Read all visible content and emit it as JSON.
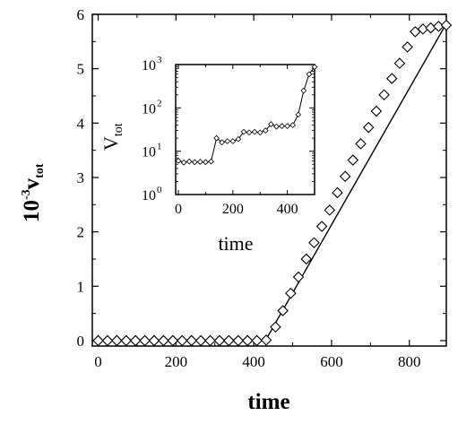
{
  "chart_data": [
    {
      "type": "line",
      "name": "main",
      "xlabel": "time",
      "ylabel_prefix": "10",
      "ylabel_exp": "-3",
      "ylabel_var": "v",
      "ylabel_sub": "tot",
      "xlim": [
        -15,
        895
      ],
      "ylim": [
        -0.1,
        6
      ],
      "xticks": [
        0,
        200,
        400,
        600,
        800
      ],
      "yticks": [
        0,
        1,
        2,
        3,
        4,
        5,
        6
      ],
      "grid": false,
      "line": {
        "x": [
          0,
          430,
          895
        ],
        "y": [
          0,
          0,
          5.83
        ]
      },
      "markers": {
        "x": [
          0,
          24,
          48,
          72,
          96,
          120,
          144,
          168,
          192,
          216,
          240,
          264,
          288,
          312,
          336,
          360,
          384,
          408,
          432,
          456,
          475,
          495,
          515,
          535,
          555,
          575,
          595,
          615,
          635,
          655,
          675,
          695,
          715,
          735,
          755,
          775,
          795,
          815,
          835,
          855,
          875,
          895
        ],
        "y": [
          0,
          0,
          0,
          0,
          0,
          0,
          0,
          0,
          0,
          0,
          0,
          0,
          0,
          0,
          0,
          0,
          0,
          0,
          0.01,
          0.25,
          0.55,
          0.87,
          1.17,
          1.5,
          1.8,
          2.1,
          2.4,
          2.72,
          3.02,
          3.32,
          3.62,
          3.92,
          4.22,
          4.52,
          4.82,
          5.1,
          5.4,
          5.68,
          5.73,
          5.75,
          5.78,
          5.8
        ]
      }
    },
    {
      "type": "line",
      "name": "inset",
      "xlabel": "time",
      "ylabel_var": "V",
      "ylabel_sub": "tot",
      "xscale": "linear",
      "yscale": "log",
      "xlim": [
        -10,
        500
      ],
      "ylim": [
        1,
        1000
      ],
      "xticks": [
        0,
        200,
        400
      ],
      "yticks_base": "10",
      "yticks_exp": [
        "0",
        "1",
        "2",
        "3"
      ],
      "grid": false,
      "x": [
        0,
        20,
        40,
        60,
        80,
        100,
        120,
        140,
        160,
        180,
        200,
        220,
        240,
        260,
        280,
        300,
        320,
        340,
        360,
        380,
        400,
        420,
        440,
        460,
        480,
        500
      ],
      "y": [
        6,
        5.5,
        5.8,
        5.6,
        5.7,
        5.6,
        5.8,
        20,
        16,
        17,
        17,
        19,
        28,
        27,
        28,
        27,
        30,
        42,
        37,
        38,
        38,
        40,
        70,
        250,
        600,
        880
      ]
    }
  ]
}
